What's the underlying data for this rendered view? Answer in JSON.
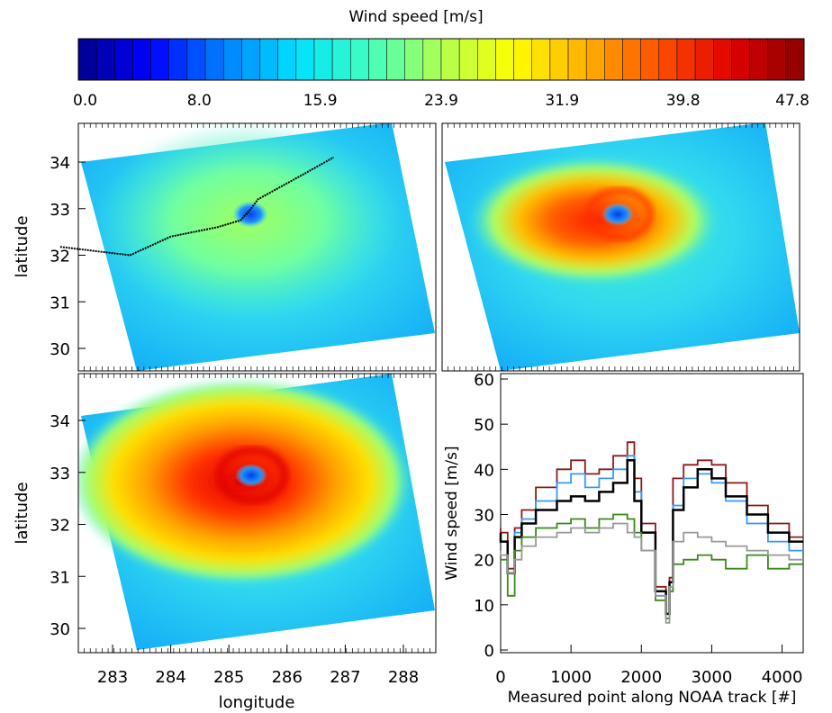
{
  "colorbar": {
    "title": "Wind speed [m/s]",
    "min": 0.0,
    "max": 47.8,
    "n_bins": 40,
    "ticks": [
      "0.0",
      "8.0",
      "15.9",
      "23.9",
      "31.9",
      "39.8",
      "47.8"
    ],
    "colors": [
      "#00008b",
      "#0000ff",
      "#0080ff",
      "#00e0ff",
      "#40ffc0",
      "#b0ff50",
      "#ffff00",
      "#ffb000",
      "#ff5000",
      "#e00000",
      "#8b0000"
    ]
  },
  "axes": {
    "latitude_label": "latitude",
    "longitude_label": "longitude",
    "lat_ticks": [
      "30",
      "31",
      "32",
      "33",
      "34"
    ],
    "lon_ticks": [
      "283",
      "284",
      "285",
      "286",
      "287",
      "288"
    ]
  },
  "maps": [
    {
      "intensity": "low",
      "track_shown": true
    },
    {
      "intensity": "high",
      "track_shown": false
    },
    {
      "intensity": "very-high",
      "track_shown": false
    }
  ],
  "track": {
    "lon": [
      282.1,
      283.3,
      284.0,
      284.8,
      285.2,
      285.35,
      285.5,
      286.3,
      286.8
    ],
    "lat": [
      32.18,
      32.0,
      32.4,
      32.6,
      32.75,
      32.95,
      33.2,
      33.75,
      34.1
    ]
  },
  "chart_data": {
    "type": "line",
    "xlabel": "Measured point along NOAA track [#]",
    "ylabel": "Wind speed [m/s]",
    "xlim": [
      0,
      4300
    ],
    "ylim": [
      0,
      60
    ],
    "xticks": [
      "0",
      "1000",
      "2000",
      "3000",
      "4000"
    ],
    "yticks": [
      "0",
      "10",
      "20",
      "30",
      "40",
      "50",
      "60"
    ],
    "x": [
      0,
      100,
      200,
      300,
      500,
      800,
      1000,
      1200,
      1400,
      1600,
      1800,
      1900,
      2000,
      2200,
      2350,
      2400,
      2450,
      2600,
      2800,
      3000,
      3200,
      3500,
      3800,
      4100,
      4300
    ],
    "series": [
      {
        "color": "#8b1a1a",
        "values": [
          27,
          26,
          18,
          27,
          31,
          36,
          40,
          42,
          39,
          40,
          43,
          46,
          38,
          28,
          14,
          8,
          16,
          38,
          41,
          42,
          41,
          37,
          32,
          28,
          25
        ]
      },
      {
        "color": "#3399ff",
        "values": [
          25,
          24,
          17,
          26,
          29,
          33,
          37,
          39,
          36,
          38,
          40,
          43,
          35,
          26,
          12,
          7,
          14,
          32,
          38,
          39,
          37,
          33,
          28,
          24,
          22
        ]
      },
      {
        "color": "#000000",
        "values": [
          26,
          24,
          17,
          25,
          28,
          31,
          33,
          34,
          33,
          35,
          37,
          42,
          33,
          26,
          13,
          8,
          15,
          31,
          36,
          40,
          38,
          34,
          30,
          26,
          24
        ]
      },
      {
        "color": "#3a8a1a",
        "values": [
          20,
          20,
          12,
          22,
          25,
          27,
          28,
          29,
          27,
          29,
          30,
          29,
          26,
          22,
          11,
          7,
          13,
          19,
          20,
          21,
          20,
          18,
          21,
          18,
          19
        ]
      },
      {
        "color": "#999999",
        "values": [
          22,
          21,
          17,
          20,
          23,
          25,
          26,
          27,
          26,
          27,
          28,
          26,
          25,
          22,
          12,
          6,
          14,
          24,
          26,
          25,
          24,
          23,
          22,
          21,
          20
        ]
      }
    ]
  }
}
